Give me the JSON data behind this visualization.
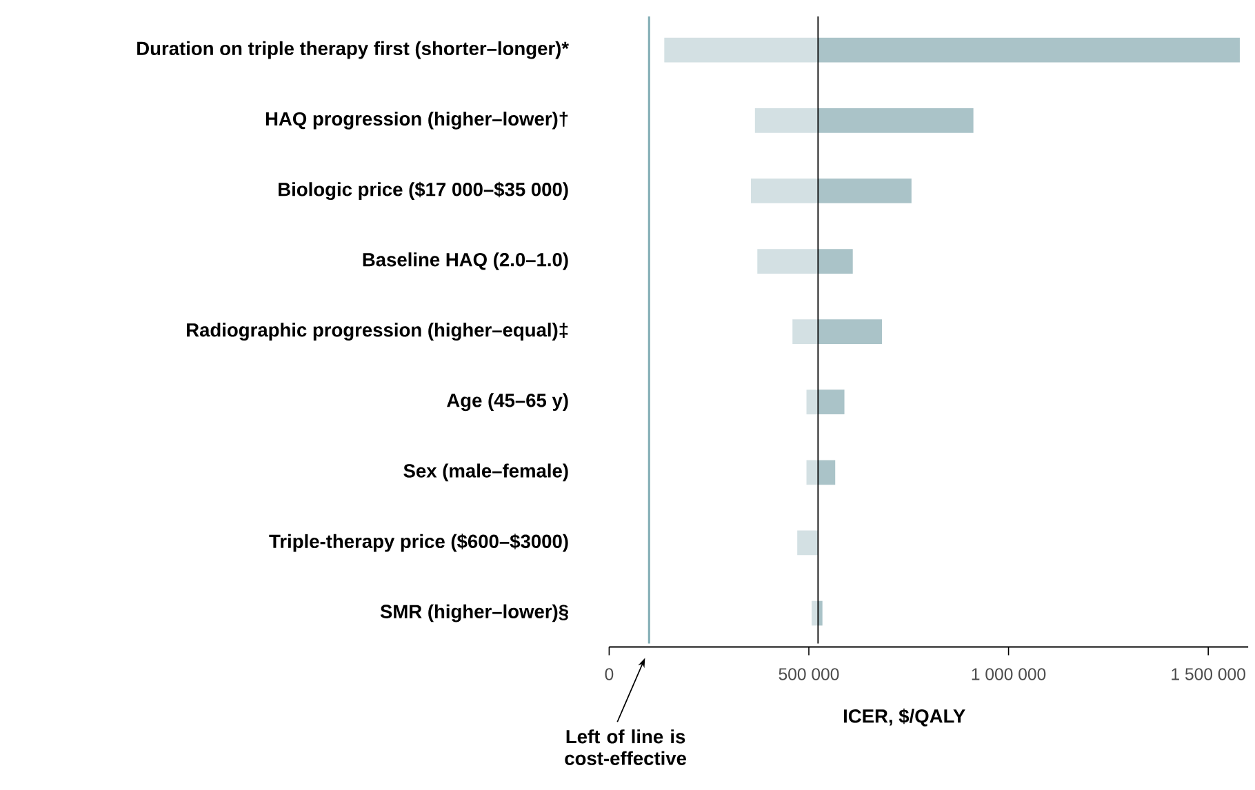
{
  "chart_data": {
    "type": "bar",
    "orientation": "horizontal",
    "xlabel": "ICER, $/QALY",
    "categories": [
      "Duration on triple therapy first (shorter–longer)*",
      "HAQ progression (higher–lower)†",
      "Biologic price ($17 000–$35 000)",
      "Baseline HAQ (2.0–1.0)",
      "Radiographic progression (higher–equal)‡",
      "Age (45–65 y)",
      "Sex (male–female)",
      "Triple-therapy price ($600–$3000)",
      "SMR (higher–lower)§"
    ],
    "series": [
      {
        "color": "#d3e0e3",
        "base": [
          138000,
          365000,
          355000,
          371000,
          459000,
          494000,
          494000,
          471000,
          507000
        ],
        "values": [
          385000,
          158000,
          168000,
          152000,
          64000,
          29000,
          29000,
          52000,
          16000
        ]
      },
      {
        "color": "#aac3c8",
        "base": [
          523000,
          523000,
          523000,
          523000,
          523000,
          523000,
          523000,
          null,
          523000
        ],
        "values": [
          1056000,
          389000,
          234000,
          87000,
          160000,
          66000,
          43000,
          null,
          11000
        ]
      }
    ],
    "xlim": [
      0,
      1600000
    ],
    "xticks": [
      0,
      {
        "value": 500000,
        "label": "500 000"
      },
      {
        "value": 1000000,
        "label": "1 000 000"
      },
      {
        "value": 1500000,
        "label": "1 500 000"
      }
    ],
    "ref_lines": [
      {
        "axis": "x",
        "value": 100000,
        "color": "#86afb7",
        "line_style": "solid"
      },
      {
        "axis": "x",
        "value": 523000,
        "color": "#000000"
      }
    ],
    "annotations": [
      "Left of line is cost-effective"
    ]
  }
}
